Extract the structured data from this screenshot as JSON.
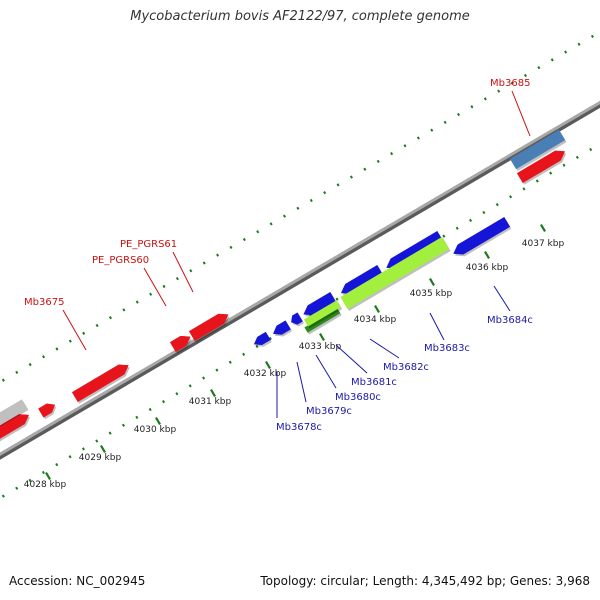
{
  "title": "Mycobacterium bovis AF2122/97, complete genome",
  "footer": {
    "accession": "Accession: NC_002945",
    "summary": "Topology: circular; Length: 4,345,492 bp; Genes: 3,968"
  },
  "colors": {
    "backbone": "#8c8c8c",
    "tick": "#1e7a1e",
    "forward_gene": "#e8141b",
    "reverse_gene": "#1515d8",
    "pseudo_gene": "#c0c0c0",
    "rna_feature": "#4a7fb5",
    "highlight_gene": "#a3ef3d",
    "highlight_gene_dark": "#2a8a1a",
    "forward_label": "#cc1111",
    "reverse_label": "#1a1aa8",
    "ruler_label": "#222222"
  },
  "ruler": [
    "4028 kbp",
    "4029 kbp",
    "4030 kbp",
    "4031 kbp",
    "4032 kbp",
    "4033 kbp",
    "4034 kbp",
    "4035 kbp",
    "4036 kbp",
    "4037 kbp"
  ],
  "forward_labels": [
    "Mb3685",
    "PE_PGRS61",
    "PE_PGRS60",
    "Mb3675"
  ],
  "reverse_labels": [
    "Mb3684c",
    "Mb3683c",
    "Mb3682c",
    "Mb3681c",
    "Mb3680c",
    "Mb3679c",
    "Mb3678c"
  ]
}
